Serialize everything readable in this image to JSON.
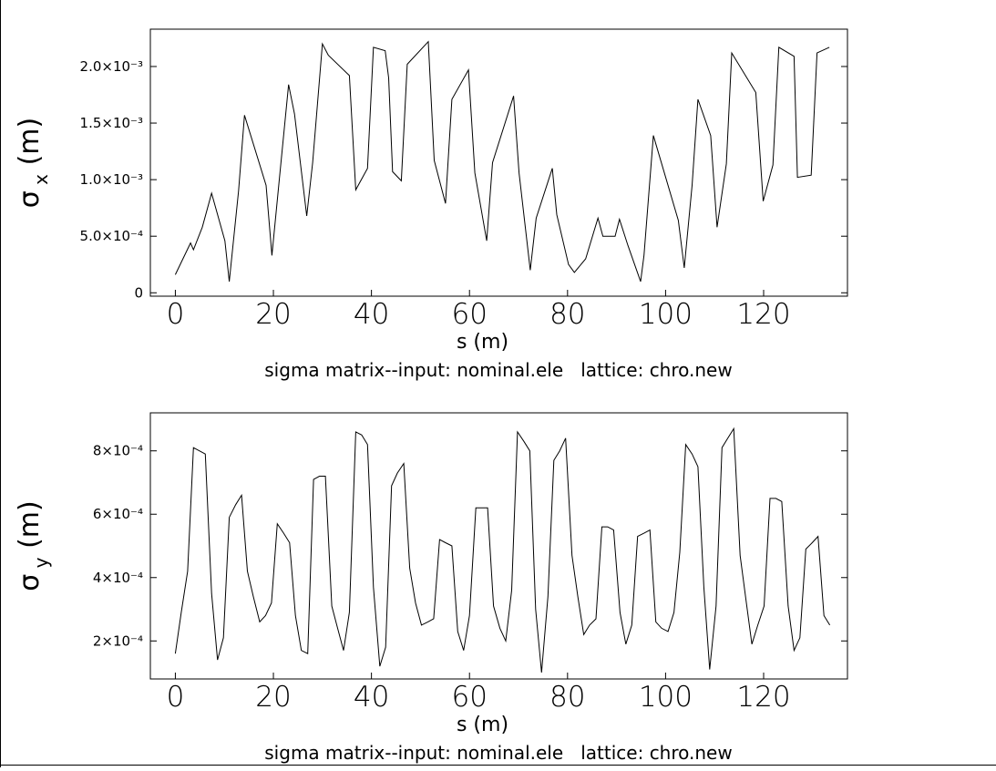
{
  "chart_data": [
    {
      "type": "line",
      "ylabel_symbol": "σ",
      "ylabel_subscript": "x",
      "ylabel_unit": "(m)",
      "xlabel": "s (m)",
      "title": "sigma matrix--input: nominal.ele   lattice: chro.new",
      "x_ticks": [
        0,
        20,
        40,
        60,
        80,
        100,
        120
      ],
      "x_tick_labels": [
        "0",
        "20",
        "40",
        "60",
        "80",
        "100",
        "120"
      ],
      "y_ticks": [
        0,
        0.0005,
        0.001,
        0.0015,
        0.002
      ],
      "y_tick_labels": [
        "0",
        "5.0×10⁻⁴",
        "1.0×10⁻³",
        "1.5×10⁻³",
        "2.0×10⁻³"
      ],
      "xlim": [
        -5.1,
        137.1
      ],
      "ylim": [
        -3e-05,
        0.00233
      ],
      "series": [
        {
          "x": [
            0,
            3.1,
            3.7,
            5.5,
            7.4,
            10.1,
            11.0,
            12.9,
            14.1,
            18.5,
            19.7,
            21.2,
            23.1,
            24.3,
            26.8,
            28.0,
            30.0,
            31.2,
            35.5,
            36.8,
            39.2,
            40.4,
            42.8,
            43.5,
            44.3,
            46.1,
            47.3,
            51.6,
            52.8,
            55.1,
            56.4,
            59.8,
            61.1,
            63.5,
            64.7,
            69.0,
            70.1,
            72.4,
            73.6,
            76.9,
            77.8,
            80.2,
            81.4,
            83.7,
            86.2,
            87.2,
            89.7,
            90.6,
            92.3,
            94.9,
            95.6,
            97.5,
            102.6,
            103.8,
            105.4,
            106.6,
            109.2,
            110.5,
            112.4,
            113.5,
            118.4,
            119.9,
            121.9,
            123.1,
            126.2,
            126.9,
            129.7,
            130.9,
            133.4
          ],
          "y": [
            0.00016,
            0.00044,
            0.00038,
            0.00058,
            0.00088,
            0.00046,
            0.0001,
            0.0009,
            0.00157,
            0.00095,
            0.00033,
            0.001,
            0.00184,
            0.00158,
            0.00068,
            0.00115,
            0.0022,
            0.0021,
            0.00192,
            0.00091,
            0.0011,
            0.00217,
            0.00214,
            0.0019,
            0.00107,
            0.00099,
            0.00202,
            0.00222,
            0.00117,
            0.00079,
            0.00171,
            0.00197,
            0.00106,
            0.00046,
            0.00115,
            0.00174,
            0.00106,
            0.0002,
            0.00066,
            0.0011,
            0.00069,
            0.00025,
            0.00018,
            0.0003,
            0.00066,
            0.0005,
            0.0005,
            0.00065,
            0.00042,
            0.0001,
            0.00033,
            0.00139,
            0.00064,
            0.00022,
            0.00095,
            0.00171,
            0.00139,
            0.00058,
            0.00114,
            0.00212,
            0.00177,
            0.00081,
            0.00113,
            0.00217,
            0.00209,
            0.00102,
            0.00104,
            0.00212,
            0.00217
          ]
        }
      ]
    },
    {
      "type": "line",
      "ylabel_symbol": "σ",
      "ylabel_subscript": "y",
      "ylabel_unit": "(m)",
      "xlabel": "s (m)",
      "title": "sigma matrix--input: nominal.ele   lattice: chro.new",
      "x_ticks": [
        0,
        20,
        40,
        60,
        80,
        100,
        120
      ],
      "x_tick_labels": [
        "0",
        "20",
        "40",
        "60",
        "80",
        "100",
        "120"
      ],
      "y_ticks": [
        0.0002,
        0.0004,
        0.0006,
        0.0008
      ],
      "y_tick_labels": [
        "2×10⁻⁴",
        "4×10⁻⁴",
        "6×10⁻⁴",
        "8×10⁻⁴"
      ],
      "xlim": [
        -5.1,
        137.1
      ],
      "ylim": [
        8e-05,
        0.00092
      ],
      "series": [
        {
          "x": [
            0,
            1.2,
            2.5,
            3.7,
            4.9,
            6.1,
            7.4,
            8.6,
            9.8,
            11.0,
            12.3,
            13.5,
            14.7,
            15.9,
            17.2,
            18.4,
            19.6,
            20.8,
            22.1,
            23.3,
            24.5,
            25.7,
            27.0,
            28.2,
            29.4,
            30.6,
            31.9,
            33.1,
            34.3,
            35.5,
            36.8,
            38.0,
            39.2,
            40.4,
            41.7,
            42.9,
            44.1,
            45.3,
            46.6,
            47.8,
            49.0,
            50.2,
            51.5,
            52.7,
            53.9,
            55.1,
            56.4,
            57.6,
            58.8,
            60.0,
            61.3,
            62.5,
            63.7,
            64.9,
            66.2,
            67.4,
            68.6,
            69.8,
            71.1,
            72.3,
            73.5,
            74.7,
            76.0,
            77.2,
            78.4,
            79.6,
            80.9,
            82.1,
            83.3,
            84.5,
            85.8,
            87.0,
            88.2,
            89.4,
            90.7,
            91.9,
            93.1,
            94.3,
            95.6,
            96.8,
            98.0,
            99.2,
            100.5,
            101.7,
            102.9,
            104.1,
            105.4,
            106.6,
            107.8,
            109.0,
            110.3,
            111.5,
            112.7,
            113.9,
            115.2,
            116.4,
            117.6,
            118.8,
            120.1,
            121.3,
            122.5,
            123.7,
            125.0,
            126.2,
            127.4,
            128.6,
            129.9,
            131.1,
            132.3,
            133.5
          ],
          "y": [
            0.00016,
            0.00029,
            0.00042,
            0.00081,
            0.0008,
            0.00079,
            0.00035,
            0.00014,
            0.00021,
            0.00059,
            0.00063,
            0.00066,
            0.00042,
            0.00034,
            0.00026,
            0.00028,
            0.00032,
            0.00057,
            0.00054,
            0.00051,
            0.00028,
            0.00017,
            0.00016,
            0.00071,
            0.00072,
            0.00072,
            0.00031,
            0.00024,
            0.00017,
            0.00029,
            0.00086,
            0.00085,
            0.00082,
            0.00037,
            0.00012,
            0.00018,
            0.00069,
            0.00073,
            0.00076,
            0.00043,
            0.00032,
            0.00025,
            0.00026,
            0.00027,
            0.00052,
            0.00051,
            0.0005,
            0.00023,
            0.00017,
            0.00028,
            0.00062,
            0.00062,
            0.00062,
            0.00031,
            0.00024,
            0.0002,
            0.00036,
            0.00086,
            0.00083,
            0.0008,
            0.0003,
            0.0001,
            0.00034,
            0.00077,
            0.0008,
            0.00084,
            0.00047,
            0.00034,
            0.00022,
            0.00025,
            0.00027,
            0.00056,
            0.00056,
            0.00055,
            0.00029,
            0.00019,
            0.00025,
            0.00053,
            0.00054,
            0.00055,
            0.00026,
            0.00024,
            0.00023,
            0.00029,
            0.00048,
            0.00082,
            0.00079,
            0.00075,
            0.00037,
            0.00011,
            0.00031,
            0.00081,
            0.00084,
            0.00087,
            0.00047,
            0.00033,
            0.00019,
            0.00025,
            0.00031,
            0.00065,
            0.00065,
            0.00064,
            0.00031,
            0.00017,
            0.00021,
            0.00049,
            0.00051,
            0.00053,
            0.00028,
            0.00025
          ]
        }
      ]
    }
  ]
}
